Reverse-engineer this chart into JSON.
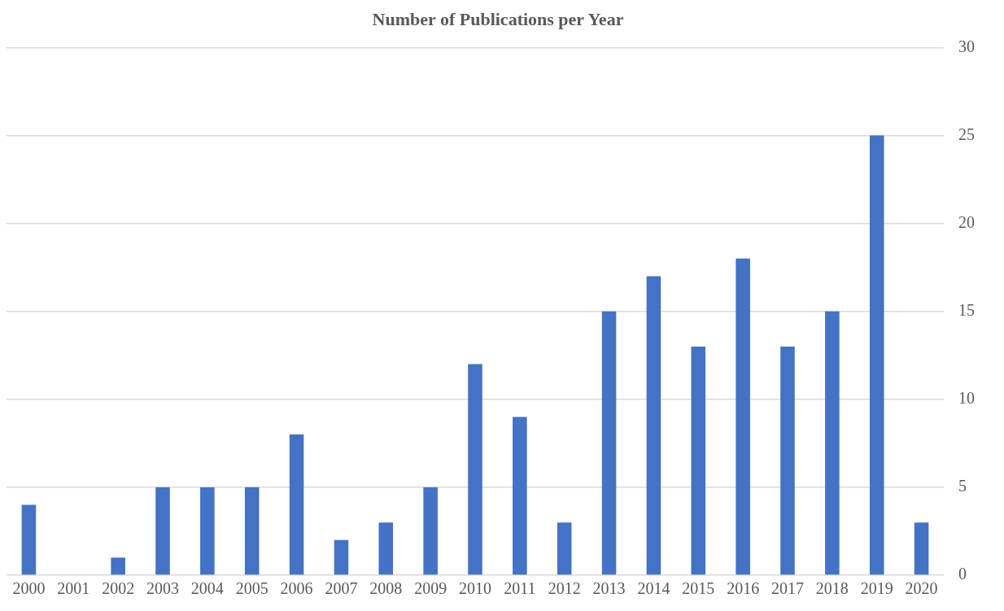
{
  "chart_data": {
    "type": "bar",
    "title": "Number of Publications per Year",
    "categories": [
      "2000",
      "2001",
      "2002",
      "2003",
      "2004",
      "2005",
      "2006",
      "2007",
      "2008",
      "2009",
      "2010",
      "2011",
      "2012",
      "2013",
      "2014",
      "2015",
      "2016",
      "2017",
      "2018",
      "2019",
      "2020"
    ],
    "values": [
      4,
      0,
      1,
      5,
      5,
      5,
      8,
      2,
      3,
      5,
      12,
      9,
      3,
      15,
      17,
      13,
      18,
      13,
      15,
      25,
      3
    ],
    "color": "#4472c4",
    "ylim": [
      0,
      30
    ],
    "yticks": [
      0,
      5,
      10,
      15,
      20,
      25,
      30
    ],
    "grid": "y",
    "legend": false
  }
}
